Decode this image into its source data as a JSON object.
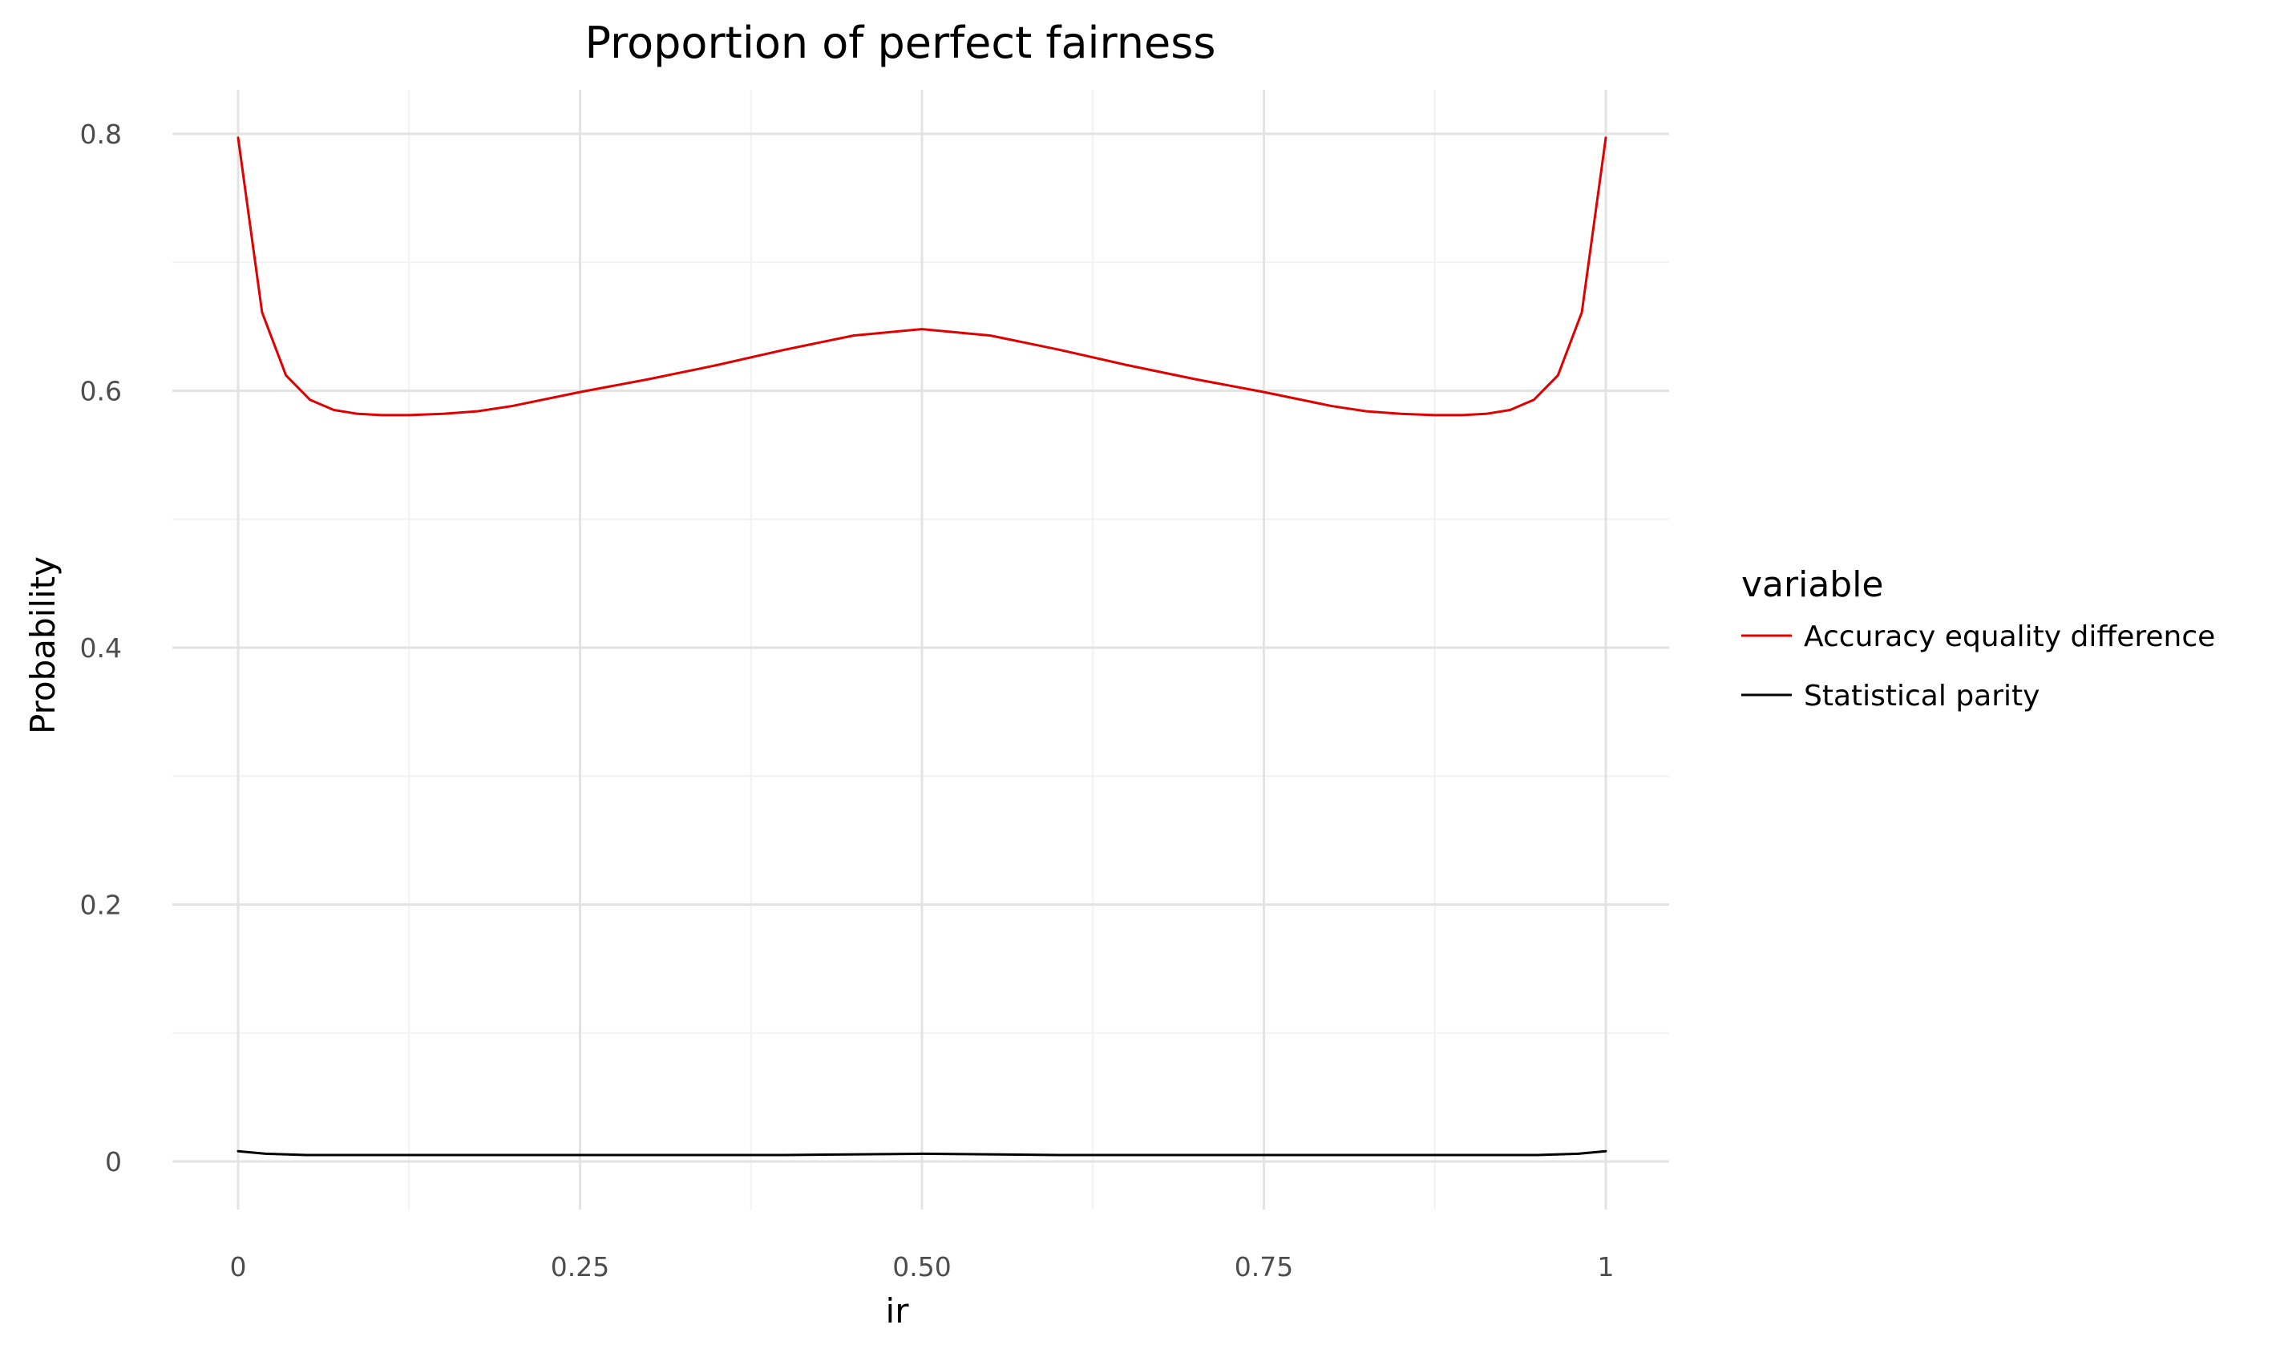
{
  "chart_data": {
    "type": "line",
    "title": "Proportion of perfect fairness",
    "xlabel": "ir",
    "ylabel": "Probability",
    "xlim": [
      0,
      1
    ],
    "ylim": [
      0,
      0.8
    ],
    "xticks": [
      0,
      0.25,
      0.5,
      0.75,
      1
    ],
    "xtick_labels": [
      "0",
      "0.25",
      "0.50",
      "0.75",
      "1"
    ],
    "yticks": [
      0,
      0.2,
      0.4,
      0.6,
      0.8
    ],
    "ytick_labels": [
      "0",
      "0.2",
      "0.4",
      "0.6",
      "0.8"
    ],
    "grid": true,
    "legend": {
      "title": "variable",
      "position": "right"
    },
    "series": [
      {
        "name": "Accuracy equality difference",
        "color": "#e00000",
        "x": [
          0,
          0.0175,
          0.035,
          0.0525,
          0.07,
          0.0875,
          0.105,
          0.125,
          0.15,
          0.175,
          0.2,
          0.25,
          0.3,
          0.35,
          0.4,
          0.45,
          0.5,
          0.55,
          0.6,
          0.65,
          0.7,
          0.75,
          0.8,
          0.825,
          0.85,
          0.875,
          0.895,
          0.9125,
          0.93,
          0.9475,
          0.965,
          0.9825,
          1
        ],
        "y": [
          0.797,
          0.661,
          0.612,
          0.593,
          0.585,
          0.582,
          0.581,
          0.581,
          0.582,
          0.584,
          0.588,
          0.599,
          0.609,
          0.62,
          0.632,
          0.643,
          0.648,
          0.643,
          0.632,
          0.62,
          0.609,
          0.599,
          0.588,
          0.584,
          0.582,
          0.581,
          0.581,
          0.582,
          0.585,
          0.593,
          0.612,
          0.661,
          0.797
        ]
      },
      {
        "name": "Statistical parity",
        "color": "#000000",
        "x": [
          0,
          0.02,
          0.05,
          0.1,
          0.2,
          0.3,
          0.4,
          0.5,
          0.6,
          0.7,
          0.8,
          0.9,
          0.95,
          0.98,
          1
        ],
        "y": [
          0.008,
          0.006,
          0.005,
          0.005,
          0.005,
          0.005,
          0.005,
          0.006,
          0.005,
          0.005,
          0.005,
          0.005,
          0.005,
          0.006,
          0.008
        ]
      }
    ]
  }
}
